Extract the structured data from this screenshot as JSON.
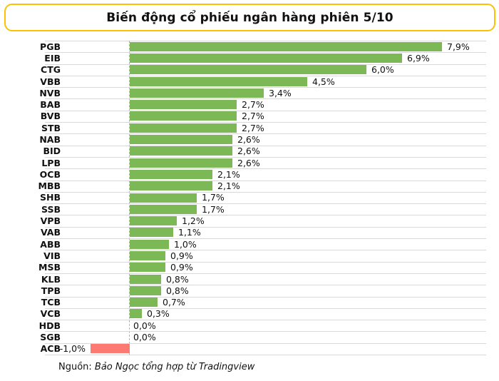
{
  "title": "Biến động cổ phiếu ngân hàng phiên 5/10",
  "footer": {
    "prefix": "Nguồn: ",
    "source": "Bảo Ngọc tổng hợp từ Tradingview"
  },
  "colors": {
    "positive_bar": "#7CB856",
    "negative_bar": "#FC7A72",
    "title_border": "#FFC000",
    "gridline": "#D9D9D9",
    "zero_axis": "#B3B3B3",
    "text": "#111111"
  },
  "chart_data": {
    "type": "bar",
    "orientation": "horizontal",
    "title": "Biến động cổ phiếu ngân hàng phiên 5/10",
    "xlabel": "",
    "ylabel": "",
    "xlim": [
      -2.1,
      9.0
    ],
    "grid": "horizontal row separators, dashed zero axis",
    "legend": "none",
    "value_format": "vietnamese decimal comma, e.g. 7,9%",
    "categories": [
      "PGB",
      "EIB",
      "CTG",
      "VBB",
      "NVB",
      "BAB",
      "BVB",
      "STB",
      "NAB",
      "BID",
      "LPB",
      "OCB",
      "MBB",
      "SHB",
      "SSB",
      "VPB",
      "VAB",
      "ABB",
      "VIB",
      "MSB",
      "KLB",
      "TPB",
      "TCB",
      "VCB",
      "HDB",
      "SGB",
      "ACB"
    ],
    "values": [
      7.9,
      6.9,
      6.0,
      4.5,
      3.4,
      2.7,
      2.7,
      2.7,
      2.6,
      2.6,
      2.6,
      2.1,
      2.1,
      1.7,
      1.7,
      1.2,
      1.1,
      1.0,
      0.9,
      0.9,
      0.8,
      0.8,
      0.7,
      0.3,
      0.0,
      0.0,
      -1.0
    ],
    "value_labels": [
      "7,9%",
      "6,9%",
      "6,0%",
      "4,5%",
      "3,4%",
      "2,7%",
      "2,7%",
      "2,7%",
      "2,6%",
      "2,6%",
      "2,6%",
      "2,1%",
      "2,1%",
      "1,7%",
      "1,7%",
      "1,2%",
      "1,1%",
      "1,0%",
      "0,9%",
      "0,9%",
      "0,8%",
      "0,8%",
      "0,7%",
      "0,3%",
      "0,0%",
      "0,0%",
      "-1,0%"
    ]
  }
}
